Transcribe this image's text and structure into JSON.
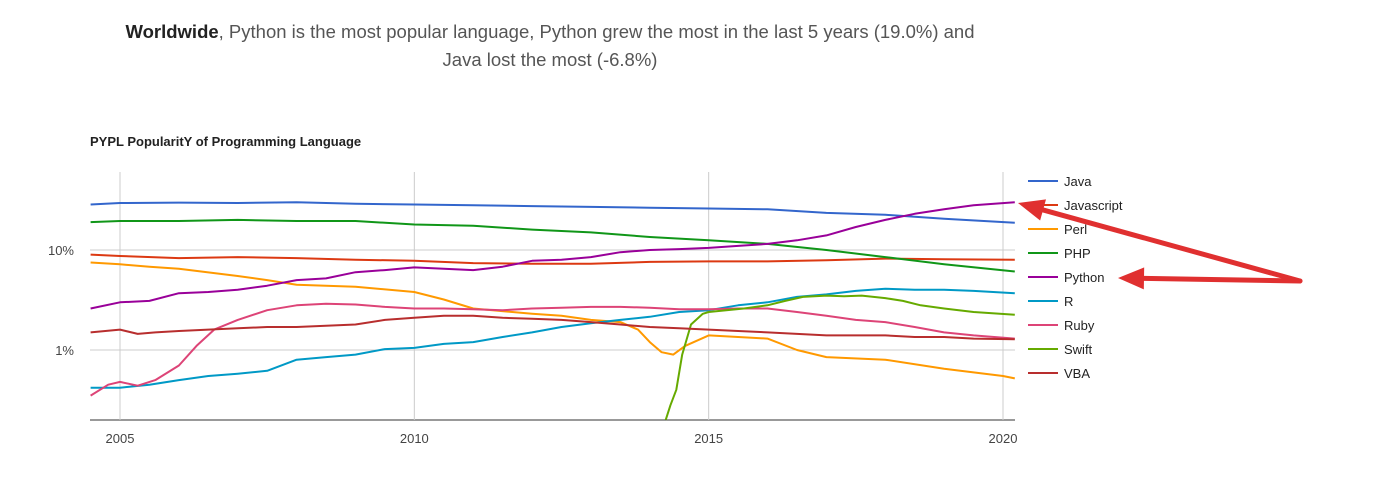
{
  "headline": {
    "bold": "Worldwide",
    "line1_rest": ", Python is the most popular language, Python grew the most in the last 5 years (19.0%) and",
    "line2": "Java lost the most (-6.8%)"
  },
  "chart_data": {
    "type": "line",
    "title": "PYPL PopularitY of Programming Language",
    "xlabel": "",
    "ylabel": "",
    "x_ticks": [
      2005,
      2010,
      2015,
      2020
    ],
    "y_scale": "log",
    "y_ticks": [
      {
        "value": 1,
        "label": "1%"
      },
      {
        "value": 10,
        "label": "10%"
      }
    ],
    "xlim": [
      2004.5,
      2020.25
    ],
    "ylim": [
      0.2,
      55
    ],
    "grid": true,
    "legend_position": "right",
    "series": [
      {
        "name": "Java",
        "color": "#3366cc",
        "points": [
          [
            2004.5,
            28.5
          ],
          [
            2005,
            29.5
          ],
          [
            2006,
            29.8
          ],
          [
            2007,
            29.5
          ],
          [
            2008,
            30.0
          ],
          [
            2009,
            29.0
          ],
          [
            2010,
            28.5
          ],
          [
            2011,
            28.0
          ],
          [
            2012,
            27.5
          ],
          [
            2013,
            27.0
          ],
          [
            2014,
            26.5
          ],
          [
            2015,
            26.0
          ],
          [
            2016,
            25.5
          ],
          [
            2017,
            23.5
          ],
          [
            2018,
            22.5
          ],
          [
            2019,
            20.5
          ],
          [
            2020.2,
            18.7
          ]
        ]
      },
      {
        "name": "Javascript",
        "color": "#dc3912",
        "points": [
          [
            2004.5,
            9.0
          ],
          [
            2005,
            8.7
          ],
          [
            2006,
            8.3
          ],
          [
            2007,
            8.5
          ],
          [
            2008,
            8.3
          ],
          [
            2009,
            8.0
          ],
          [
            2010,
            7.8
          ],
          [
            2011,
            7.4
          ],
          [
            2012,
            7.3
          ],
          [
            2013,
            7.3
          ],
          [
            2014,
            7.6
          ],
          [
            2015,
            7.7
          ],
          [
            2016,
            7.7
          ],
          [
            2017,
            7.9
          ],
          [
            2018,
            8.2
          ],
          [
            2019,
            8.1
          ],
          [
            2020.2,
            8.0
          ]
        ]
      },
      {
        "name": "Perl",
        "color": "#ff9900",
        "points": [
          [
            2004.5,
            7.5
          ],
          [
            2005,
            7.2
          ],
          [
            2005.5,
            6.8
          ],
          [
            2006,
            6.5
          ],
          [
            2007,
            5.5
          ],
          [
            2007.5,
            5.0
          ],
          [
            2008,
            4.5
          ],
          [
            2009,
            4.3
          ],
          [
            2010,
            3.8
          ],
          [
            2010.5,
            3.2
          ],
          [
            2011,
            2.6
          ],
          [
            2012,
            2.3
          ],
          [
            2012.5,
            2.2
          ],
          [
            2013,
            2.0
          ],
          [
            2013.5,
            1.9
          ],
          [
            2013.8,
            1.6
          ],
          [
            2014,
            1.2
          ],
          [
            2014.2,
            0.95
          ],
          [
            2014.4,
            0.9
          ],
          [
            2014.6,
            1.1
          ],
          [
            2015,
            1.4
          ],
          [
            2015.5,
            1.35
          ],
          [
            2016,
            1.3
          ],
          [
            2016.5,
            1.0
          ],
          [
            2017,
            0.85
          ],
          [
            2018,
            0.8
          ],
          [
            2019,
            0.65
          ],
          [
            2020,
            0.55
          ],
          [
            2020.2,
            0.52
          ]
        ]
      },
      {
        "name": "PHP",
        "color": "#109618",
        "points": [
          [
            2004.5,
            19.0
          ],
          [
            2005,
            19.5
          ],
          [
            2006,
            19.5
          ],
          [
            2007,
            20.0
          ],
          [
            2008,
            19.5
          ],
          [
            2009,
            19.5
          ],
          [
            2010,
            18.0
          ],
          [
            2011,
            17.5
          ],
          [
            2012,
            16.0
          ],
          [
            2013,
            15.0
          ],
          [
            2014,
            13.5
          ],
          [
            2015,
            12.5
          ],
          [
            2016,
            11.5
          ],
          [
            2017,
            10.0
          ],
          [
            2018,
            8.5
          ],
          [
            2019,
            7.2
          ],
          [
            2020.2,
            6.1
          ]
        ]
      },
      {
        "name": "Python",
        "color": "#990099",
        "points": [
          [
            2004.5,
            2.6
          ],
          [
            2005,
            3.0
          ],
          [
            2005.5,
            3.1
          ],
          [
            2006,
            3.7
          ],
          [
            2006.5,
            3.8
          ],
          [
            2007,
            4.0
          ],
          [
            2007.5,
            4.4
          ],
          [
            2008,
            5.0
          ],
          [
            2008.5,
            5.2
          ],
          [
            2009,
            6.0
          ],
          [
            2009.5,
            6.3
          ],
          [
            2010,
            6.7
          ],
          [
            2010.5,
            6.5
          ],
          [
            2011,
            6.3
          ],
          [
            2011.5,
            6.8
          ],
          [
            2012,
            7.8
          ],
          [
            2012.5,
            8.0
          ],
          [
            2013,
            8.5
          ],
          [
            2013.5,
            9.5
          ],
          [
            2014,
            10.0
          ],
          [
            2014.5,
            10.2
          ],
          [
            2015,
            10.5
          ],
          [
            2015.5,
            11.0
          ],
          [
            2016,
            11.5
          ],
          [
            2016.5,
            12.5
          ],
          [
            2017,
            14.0
          ],
          [
            2017.5,
            17.0
          ],
          [
            2018,
            20.0
          ],
          [
            2018.5,
            23.0
          ],
          [
            2019,
            25.5
          ],
          [
            2019.5,
            28.0
          ],
          [
            2020.2,
            30.0
          ]
        ]
      },
      {
        "name": "R",
        "color": "#0099c6",
        "points": [
          [
            2004.5,
            0.42
          ],
          [
            2005,
            0.42
          ],
          [
            2005.5,
            0.45
          ],
          [
            2006,
            0.5
          ],
          [
            2006.5,
            0.55
          ],
          [
            2007,
            0.58
          ],
          [
            2007.5,
            0.62
          ],
          [
            2008,
            0.8
          ],
          [
            2008.5,
            0.85
          ],
          [
            2009,
            0.9
          ],
          [
            2009.5,
            1.02
          ],
          [
            2010,
            1.05
          ],
          [
            2010.5,
            1.15
          ],
          [
            2011,
            1.2
          ],
          [
            2011.5,
            1.35
          ],
          [
            2012,
            1.5
          ],
          [
            2012.5,
            1.7
          ],
          [
            2013,
            1.85
          ],
          [
            2013.5,
            2.0
          ],
          [
            2014,
            2.15
          ],
          [
            2014.5,
            2.4
          ],
          [
            2015,
            2.5
          ],
          [
            2015.5,
            2.8
          ],
          [
            2016,
            3.0
          ],
          [
            2016.5,
            3.4
          ],
          [
            2017,
            3.6
          ],
          [
            2017.5,
            3.9
          ],
          [
            2018,
            4.1
          ],
          [
            2018.5,
            4.0
          ],
          [
            2019,
            4.0
          ],
          [
            2019.5,
            3.9
          ],
          [
            2020.2,
            3.7
          ]
        ]
      },
      {
        "name": "Ruby",
        "color": "#dd4477",
        "points": [
          [
            2004.5,
            0.35
          ],
          [
            2004.8,
            0.45
          ],
          [
            2005,
            0.48
          ],
          [
            2005.3,
            0.44
          ],
          [
            2005.6,
            0.5
          ],
          [
            2006,
            0.7
          ],
          [
            2006.3,
            1.1
          ],
          [
            2006.6,
            1.6
          ],
          [
            2007,
            2.0
          ],
          [
            2007.5,
            2.5
          ],
          [
            2008,
            2.8
          ],
          [
            2008.5,
            2.9
          ],
          [
            2009,
            2.85
          ],
          [
            2009.5,
            2.7
          ],
          [
            2010,
            2.6
          ],
          [
            2010.5,
            2.6
          ],
          [
            2011,
            2.55
          ],
          [
            2011.5,
            2.5
          ],
          [
            2012,
            2.6
          ],
          [
            2012.5,
            2.65
          ],
          [
            2013,
            2.7
          ],
          [
            2013.5,
            2.7
          ],
          [
            2014,
            2.65
          ],
          [
            2014.5,
            2.55
          ],
          [
            2015,
            2.55
          ],
          [
            2015.5,
            2.6
          ],
          [
            2016,
            2.6
          ],
          [
            2016.5,
            2.4
          ],
          [
            2017,
            2.2
          ],
          [
            2017.5,
            2.0
          ],
          [
            2018,
            1.9
          ],
          [
            2018.5,
            1.7
          ],
          [
            2019,
            1.5
          ],
          [
            2019.5,
            1.4
          ],
          [
            2020.2,
            1.3
          ]
        ]
      },
      {
        "name": "Swift",
        "color": "#66aa00",
        "points": [
          [
            2014.27,
            0.2
          ],
          [
            2014.35,
            0.28
          ],
          [
            2014.45,
            0.4
          ],
          [
            2014.55,
            0.9
          ],
          [
            2014.7,
            1.8
          ],
          [
            2014.9,
            2.3
          ],
          [
            2015,
            2.4
          ],
          [
            2015.3,
            2.5
          ],
          [
            2015.6,
            2.6
          ],
          [
            2016,
            2.8
          ],
          [
            2016.3,
            3.1
          ],
          [
            2016.6,
            3.4
          ],
          [
            2017,
            3.5
          ],
          [
            2017.3,
            3.45
          ],
          [
            2017.6,
            3.5
          ],
          [
            2018,
            3.3
          ],
          [
            2018.3,
            3.1
          ],
          [
            2018.6,
            2.8
          ],
          [
            2019,
            2.6
          ],
          [
            2019.5,
            2.4
          ],
          [
            2020.2,
            2.25
          ]
        ]
      },
      {
        "name": "VBA",
        "color": "#b82e2e",
        "points": [
          [
            2004.5,
            1.5
          ],
          [
            2005,
            1.6
          ],
          [
            2005.3,
            1.45
          ],
          [
            2005.6,
            1.5
          ],
          [
            2006,
            1.55
          ],
          [
            2006.5,
            1.6
          ],
          [
            2007,
            1.65
          ],
          [
            2007.5,
            1.7
          ],
          [
            2008,
            1.7
          ],
          [
            2008.5,
            1.75
          ],
          [
            2009,
            1.8
          ],
          [
            2009.5,
            2.0
          ],
          [
            2010,
            2.1
          ],
          [
            2010.5,
            2.2
          ],
          [
            2011,
            2.2
          ],
          [
            2011.5,
            2.1
          ],
          [
            2012,
            2.05
          ],
          [
            2012.5,
            2.0
          ],
          [
            2013,
            1.9
          ],
          [
            2013.5,
            1.8
          ],
          [
            2014,
            1.7
          ],
          [
            2014.5,
            1.65
          ],
          [
            2015,
            1.6
          ],
          [
            2015.5,
            1.55
          ],
          [
            2016,
            1.5
          ],
          [
            2016.5,
            1.45
          ],
          [
            2017,
            1.4
          ],
          [
            2017.5,
            1.4
          ],
          [
            2018,
            1.4
          ],
          [
            2018.5,
            1.35
          ],
          [
            2019,
            1.35
          ],
          [
            2019.5,
            1.3
          ],
          [
            2020.2,
            1.28
          ]
        ]
      }
    ]
  },
  "annotations": {
    "arrow_color": "#e03030",
    "arrows": [
      {
        "target": "Python series end"
      },
      {
        "target": "Python legend entry"
      }
    ]
  }
}
